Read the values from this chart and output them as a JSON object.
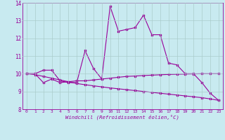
{
  "xlabel": "Windchill (Refroidissement éolien,°C)",
  "xlim": [
    -0.5,
    23.5
  ],
  "ylim": [
    8,
    14
  ],
  "yticks": [
    8,
    9,
    10,
    11,
    12,
    13,
    14
  ],
  "xticks": [
    0,
    1,
    2,
    3,
    4,
    5,
    6,
    7,
    8,
    9,
    10,
    11,
    12,
    13,
    14,
    15,
    16,
    17,
    18,
    19,
    20,
    21,
    22,
    23
  ],
  "bg_color": "#c8eaf0",
  "line_color": "#990099",
  "grid_color": "#aacccc",
  "line1_x": [
    0,
    1,
    2,
    3,
    4,
    5,
    6,
    7,
    8,
    9,
    10,
    11,
    12,
    13,
    14,
    15,
    16,
    17,
    18,
    19,
    20,
    21,
    22,
    23
  ],
  "line1_y": [
    10.0,
    10.0,
    10.2,
    10.2,
    9.6,
    9.5,
    9.5,
    11.3,
    10.3,
    9.7,
    13.8,
    12.4,
    12.5,
    12.6,
    13.3,
    12.2,
    12.2,
    10.6,
    10.5,
    10.0,
    10.0,
    9.5,
    8.9,
    8.5
  ],
  "line2_x": [
    0,
    1,
    2,
    3,
    4,
    5,
    6,
    7,
    8,
    9,
    10,
    11,
    12,
    13,
    14,
    15,
    16,
    17,
    18,
    19,
    20,
    21,
    22,
    23
  ],
  "line2_y": [
    10.0,
    10.0,
    9.5,
    9.7,
    9.5,
    9.55,
    9.6,
    9.6,
    9.65,
    9.7,
    9.75,
    9.8,
    9.85,
    9.87,
    9.9,
    9.92,
    9.94,
    9.96,
    9.97,
    9.98,
    9.99,
    10.0,
    10.0,
    10.0
  ],
  "line3_x": [
    0,
    1,
    2,
    3,
    4,
    5,
    6,
    7,
    8,
    9,
    10,
    11,
    12,
    13,
    14,
    15,
    16,
    17,
    18,
    19,
    20,
    21,
    22,
    23
  ],
  "line3_y": [
    10.0,
    9.95,
    9.85,
    9.75,
    9.65,
    9.55,
    9.45,
    9.38,
    9.32,
    9.26,
    9.2,
    9.15,
    9.1,
    9.05,
    9.0,
    8.95,
    8.9,
    8.85,
    8.8,
    8.75,
    8.7,
    8.65,
    8.58,
    8.5
  ]
}
